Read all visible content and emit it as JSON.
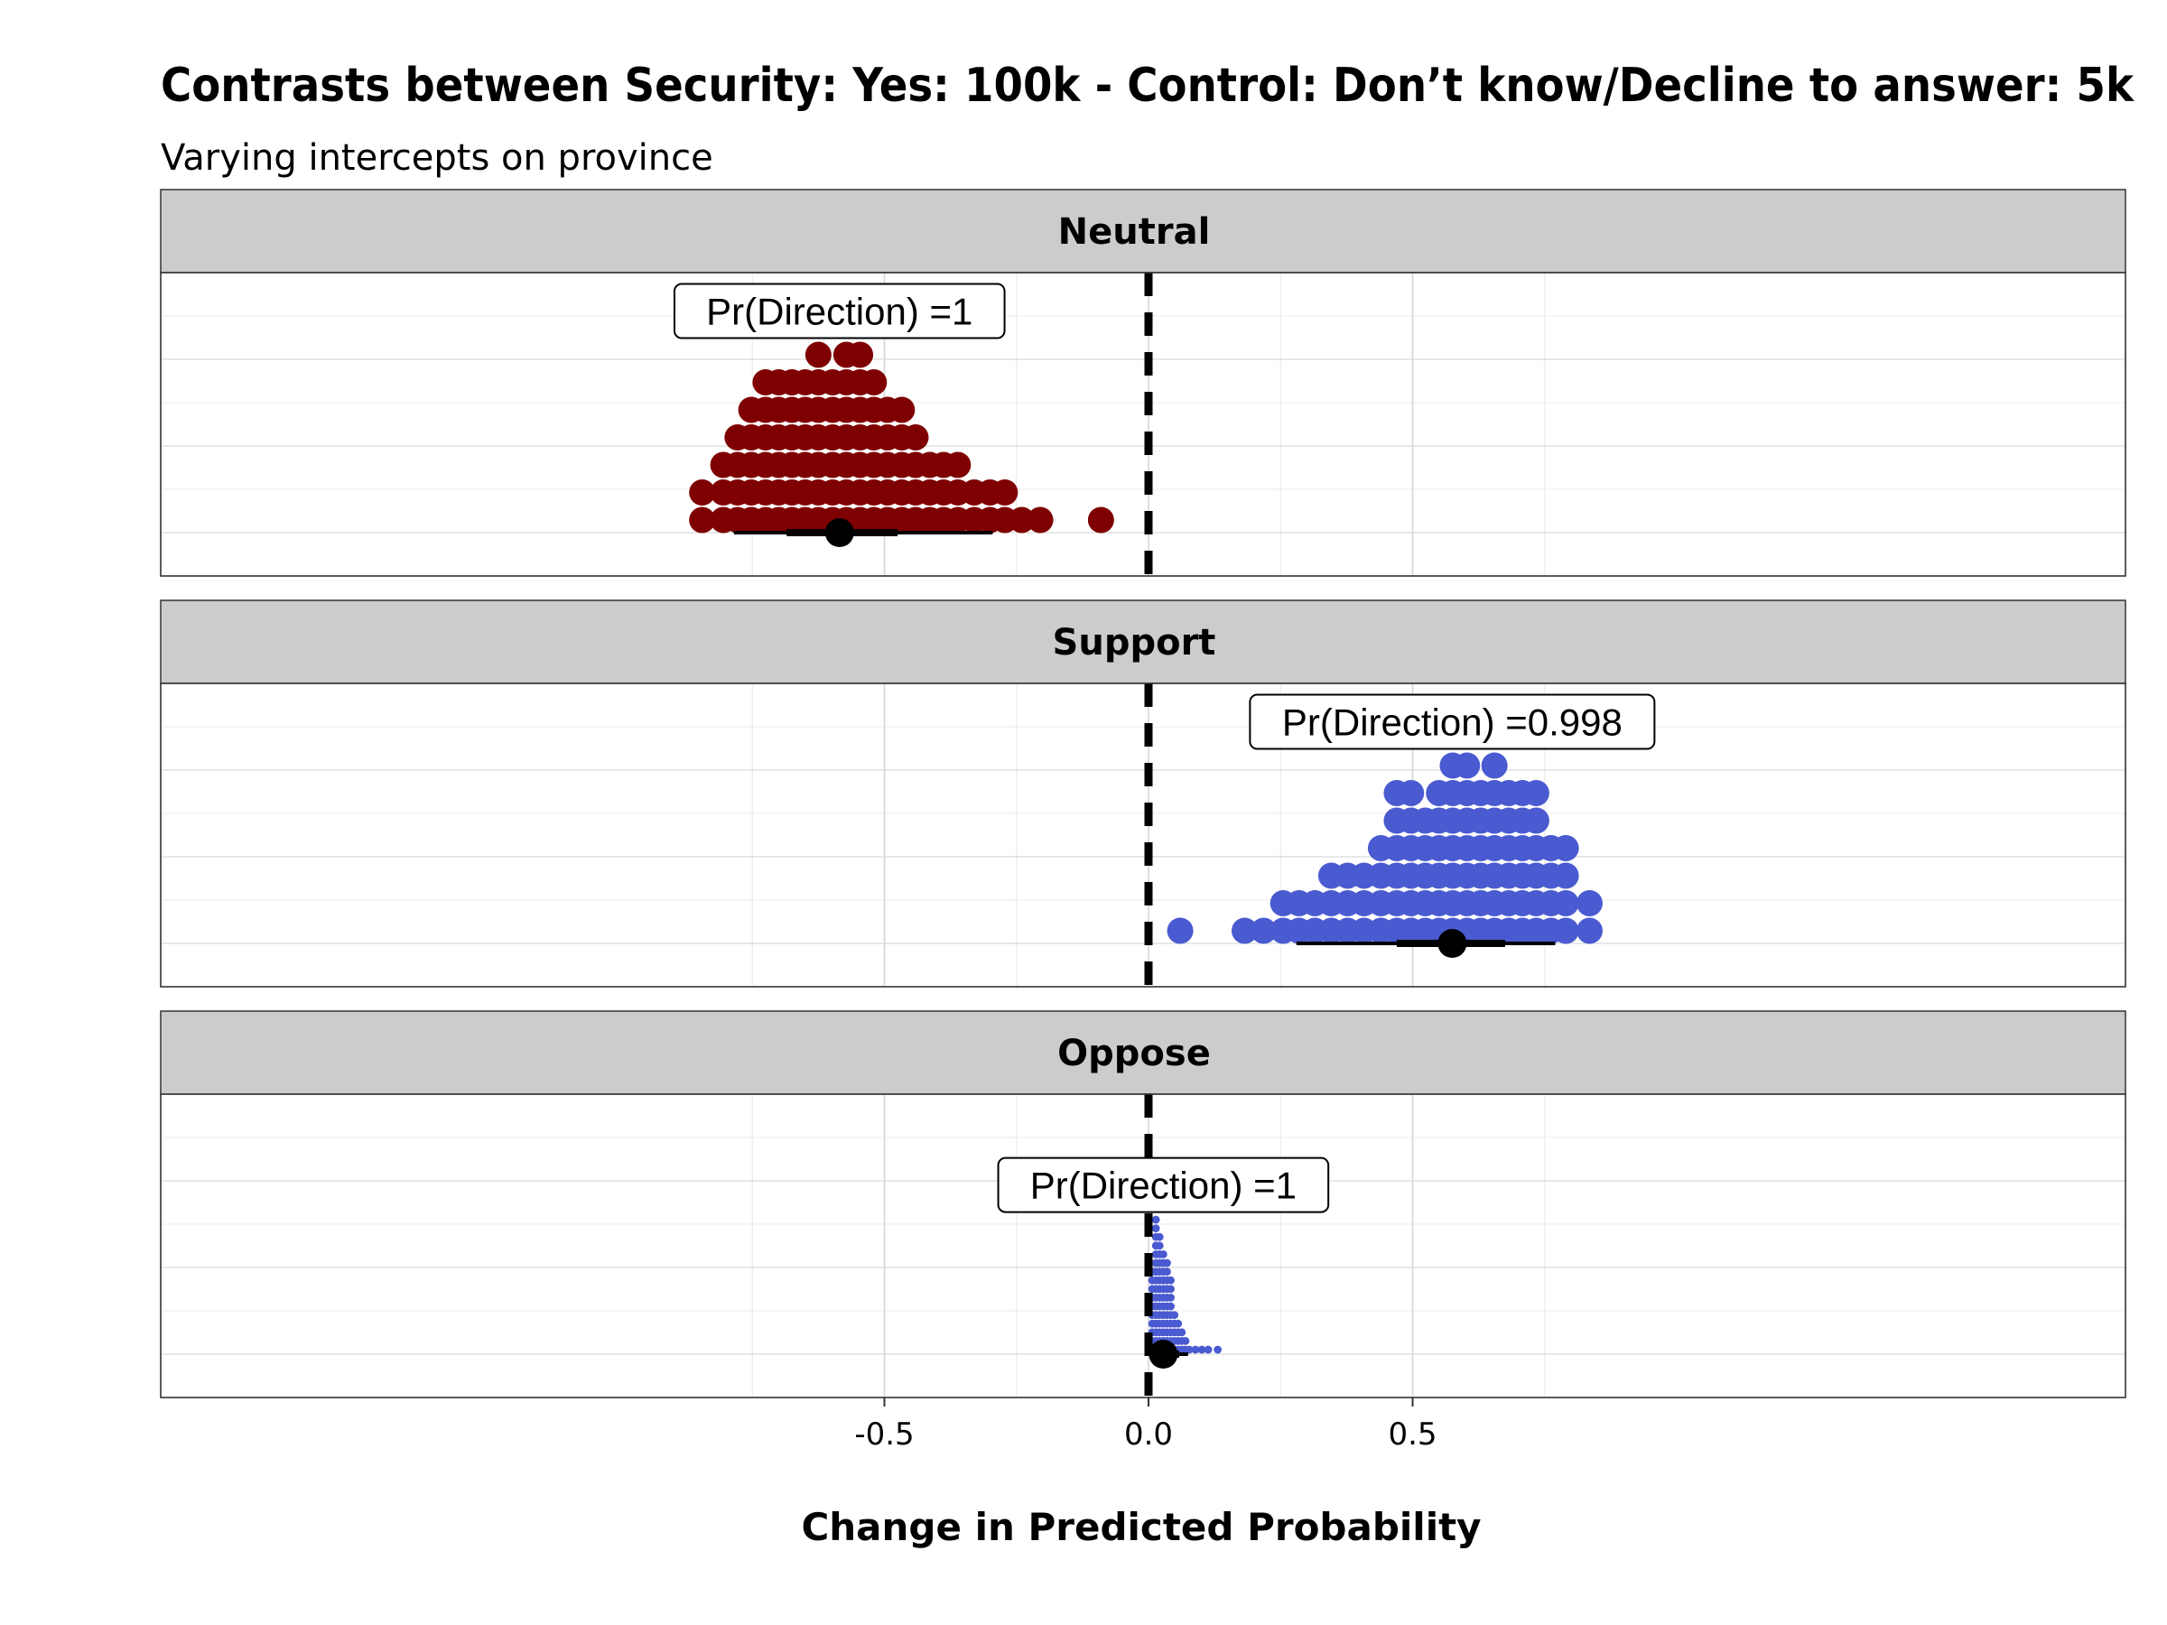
{
  "chart_data": {
    "type": "dotplot",
    "title": "Contrasts between Security: Yes: 100k - Control: Don’t know/Decline to answer: 5k",
    "subtitle": "Varying intercepts on province",
    "xlabel": "Change in Predicted Probability",
    "xlim": [
      -0.93,
      0.93
    ],
    "x_ticks": [
      -0.5,
      0.0,
      0.5
    ],
    "x_tick_labels": [
      "-0.5",
      "0.0",
      "0.5"
    ],
    "reference_line": 0.0,
    "grid": true,
    "panels": [
      {
        "name": "Neutral",
        "color": "#7f0000",
        "pr_direction_label": "Pr(Direction) =1",
        "median": -0.585,
        "interval_inner": [
          -0.685,
          -0.475
        ],
        "interval_outer": [
          -0.785,
          -0.295
        ],
        "bins": [
          {
            "x": -0.845,
            "count": 2
          },
          {
            "x": -0.805,
            "count": 3
          },
          {
            "x": -0.778,
            "count": 4
          },
          {
            "x": -0.752,
            "count": 5
          },
          {
            "x": -0.725,
            "count": 6
          },
          {
            "x": -0.7,
            "count": 6
          },
          {
            "x": -0.675,
            "count": 6
          },
          {
            "x": -0.65,
            "count": 6
          },
          {
            "x": -0.625,
            "count": 7
          },
          {
            "x": -0.598,
            "count": 6
          },
          {
            "x": -0.572,
            "count": 7
          },
          {
            "x": -0.546,
            "count": 7
          },
          {
            "x": -0.52,
            "count": 6
          },
          {
            "x": -0.494,
            "count": 5
          },
          {
            "x": -0.467,
            "count": 5
          },
          {
            "x": -0.441,
            "count": 4
          },
          {
            "x": -0.414,
            "count": 3
          },
          {
            "x": -0.388,
            "count": 3
          },
          {
            "x": -0.361,
            "count": 3
          },
          {
            "x": -0.33,
            "count": 2
          },
          {
            "x": -0.3,
            "count": 2
          },
          {
            "x": -0.272,
            "count": 2
          },
          {
            "x": -0.24,
            "count": 1
          },
          {
            "x": -0.205,
            "count": 1
          },
          {
            "x": -0.09,
            "count": 1
          }
        ]
      },
      {
        "name": "Support",
        "color": "#4a5ad0",
        "pr_direction_label": "Pr(Direction) =0.998",
        "median": 0.575,
        "interval_inner": [
          0.47,
          0.675
        ],
        "interval_outer": [
          0.28,
          0.77
        ],
        "bins": [
          {
            "x": 0.06,
            "count": 1
          },
          {
            "x": 0.182,
            "count": 1
          },
          {
            "x": 0.218,
            "count": 1
          },
          {
            "x": 0.255,
            "count": 2
          },
          {
            "x": 0.285,
            "count": 2
          },
          {
            "x": 0.315,
            "count": 2
          },
          {
            "x": 0.346,
            "count": 3
          },
          {
            "x": 0.377,
            "count": 3
          },
          {
            "x": 0.408,
            "count": 3
          },
          {
            "x": 0.44,
            "count": 4
          },
          {
            "x": 0.47,
            "count": 6
          },
          {
            "x": 0.497,
            "count": 6
          },
          {
            "x": 0.524,
            "count": 5
          },
          {
            "x": 0.55,
            "count": 6
          },
          {
            "x": 0.576,
            "count": 7
          },
          {
            "x": 0.603,
            "count": 7
          },
          {
            "x": 0.629,
            "count": 6
          },
          {
            "x": 0.655,
            "count": 7
          },
          {
            "x": 0.682,
            "count": 6
          },
          {
            "x": 0.708,
            "count": 6
          },
          {
            "x": 0.734,
            "count": 6
          },
          {
            "x": 0.762,
            "count": 4
          },
          {
            "x": 0.79,
            "count": 4
          },
          {
            "x": 0.835,
            "count": 2
          }
        ]
      },
      {
        "name": "Oppose",
        "color": "#4a5ad0",
        "pr_direction_label": "Pr(Direction) =1",
        "median": 0.028,
        "interval_inner": [
          0.012,
          0.058
        ],
        "interval_outer": [
          0.004,
          0.075
        ],
        "bins": [
          {
            "x": 0.007,
            "count": 10
          },
          {
            "x": 0.014,
            "count": 16
          },
          {
            "x": 0.021,
            "count": 14
          },
          {
            "x": 0.028,
            "count": 12
          },
          {
            "x": 0.035,
            "count": 11
          },
          {
            "x": 0.042,
            "count": 9
          },
          {
            "x": 0.049,
            "count": 5
          },
          {
            "x": 0.056,
            "count": 4
          },
          {
            "x": 0.063,
            "count": 3
          },
          {
            "x": 0.07,
            "count": 2
          },
          {
            "x": 0.077,
            "count": 1
          },
          {
            "x": 0.089,
            "count": 1
          },
          {
            "x": 0.101,
            "count": 1
          },
          {
            "x": 0.113,
            "count": 1
          },
          {
            "x": 0.131,
            "count": 1
          }
        ]
      }
    ]
  }
}
